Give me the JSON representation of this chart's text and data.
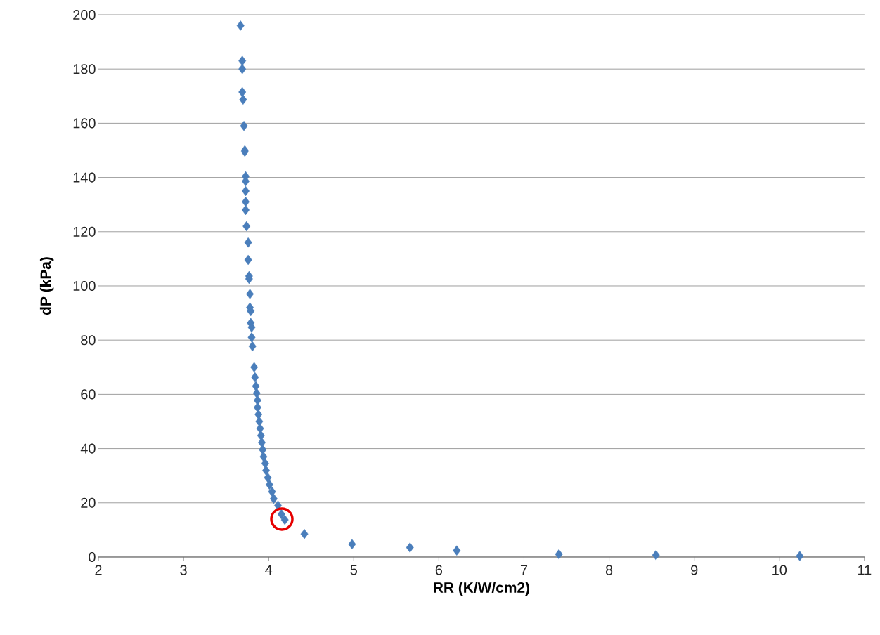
{
  "chart_data": {
    "type": "scatter",
    "xlabel": "RR (K/W/cm2)",
    "ylabel": "dP (kPa)",
    "xlim": [
      2,
      11
    ],
    "xticks": [
      2,
      3,
      4,
      5,
      6,
      7,
      8,
      9,
      10,
      11
    ],
    "ylim": [
      0,
      200
    ],
    "yticks": [
      0,
      20,
      40,
      60,
      80,
      100,
      120,
      140,
      160,
      180,
      200
    ],
    "grid": "y",
    "marker": "diamond",
    "series": [
      {
        "color": "#4a7ebb",
        "x": [
          3.67,
          3.69,
          3.69,
          3.69,
          3.7,
          3.71,
          3.72,
          3.72,
          3.73,
          3.73,
          3.73,
          3.73,
          3.73,
          3.74,
          3.76,
          3.76,
          3.77,
          3.77,
          3.78,
          3.78,
          3.79,
          3.79,
          3.8,
          3.8,
          3.81,
          3.83,
          3.84,
          3.85,
          3.86,
          3.87,
          3.87,
          3.88,
          3.89,
          3.9,
          3.91,
          3.92,
          3.93,
          3.94,
          3.96,
          3.97,
          3.99,
          4.01,
          4.04,
          4.06,
          4.11,
          4.15,
          4.19,
          4.42,
          4.98,
          5.66,
          6.21,
          7.41,
          8.55,
          10.24
        ],
        "values": [
          196,
          183,
          180,
          171.5,
          168.7,
          159,
          150,
          149.5,
          140.4,
          138.6,
          135,
          131,
          128,
          122,
          116,
          109.6,
          103.6,
          102.6,
          97,
          92,
          90.7,
          86.3,
          84.7,
          81,
          77.7,
          70,
          66.3,
          63,
          60.4,
          57.8,
          55.2,
          52.6,
          50,
          47.4,
          44.8,
          42.2,
          39.6,
          37,
          34.5,
          31.9,
          29.3,
          26.7,
          24.1,
          21.5,
          19,
          15.8,
          13.7,
          8.5,
          4.7,
          3.5,
          2.4,
          1.0,
          0.7,
          0.4
        ]
      }
    ]
  }
}
